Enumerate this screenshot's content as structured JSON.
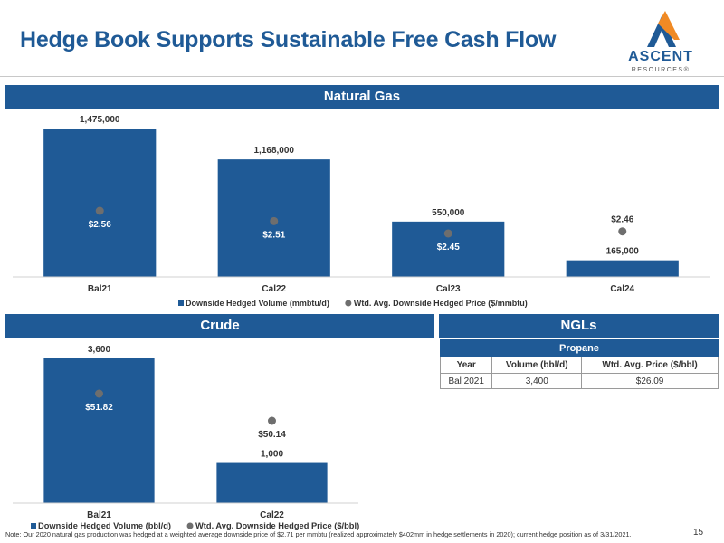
{
  "header": {
    "title": "Hedge Book Supports Sustainable Free Cash Flow",
    "logo_word": "ASCENT",
    "logo_sub": "RESOURCES®"
  },
  "natural_gas": {
    "section_title": "Natural Gas"
  },
  "crude": {
    "section_title": "Crude"
  },
  "ngls": {
    "section_title": "NGLs",
    "table": {
      "caption": "Propane",
      "headers": [
        "Year",
        "Volume (bbl/d)",
        "Wtd. Avg. Price ($/bbl)"
      ],
      "rows": [
        [
          "Bal 2021",
          "3,400",
          "$26.09"
        ]
      ]
    }
  },
  "chart_data": [
    {
      "type": "bar",
      "categories": [
        "Bal21",
        "Cal22",
        "Cal23",
        "Cal24"
      ],
      "series": [
        {
          "name": "Downside Hedged Volume (mmbtu/d)",
          "values": [
            1475000,
            1168000,
            550000,
            165000
          ],
          "labels": [
            "1,475,000",
            "1,168,000",
            "550,000",
            "165,000"
          ],
          "color": "#1f5a96"
        },
        {
          "name": "Wtd. Avg. Downside Hedged Price ($/mmbtu)",
          "values": [
            2.56,
            2.51,
            2.45,
            2.46
          ],
          "labels": [
            "$2.56",
            "$2.51",
            "$2.45",
            "$2.46"
          ],
          "color": "#6e6e6e"
        }
      ],
      "title": "",
      "xlabel": "",
      "ylabel": "",
      "grid": false,
      "legend": "bottom"
    },
    {
      "type": "bar",
      "categories": [
        "Bal21",
        "Cal22"
      ],
      "series": [
        {
          "name": "Downside Hedged Volume (bbl/d)",
          "values": [
            3600,
            1000
          ],
          "labels": [
            "3,600",
            "1,000"
          ],
          "color": "#1f5a96"
        },
        {
          "name": "Wtd. Avg. Downside Hedged Price ($/bbl)",
          "values": [
            51.82,
            50.14
          ],
          "labels": [
            "$51.82",
            "$50.14"
          ],
          "color": "#6e6e6e"
        }
      ],
      "title": "",
      "xlabel": "",
      "ylabel": "",
      "grid": false,
      "legend": "bottom"
    }
  ],
  "footnote": "Note: Our 2020 natural gas production was hedged at a weighted average downside price of $2.71 per mmbtu (realized approximately $402mm in hedge settlements in 2020); current hedge position as of 3/31/2021.",
  "page_number": "15"
}
